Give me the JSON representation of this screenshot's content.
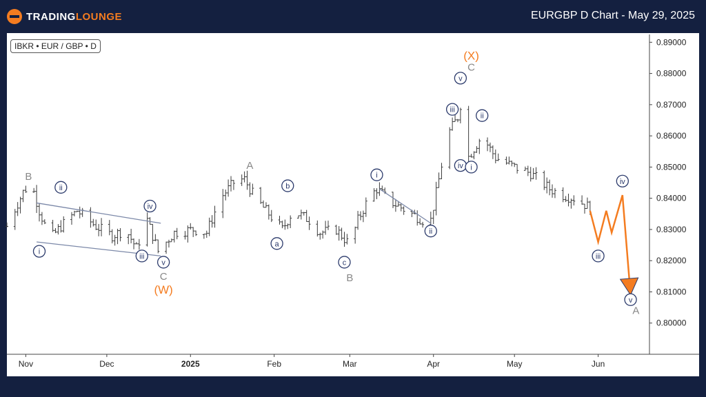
{
  "header": {
    "brand_part1": "TRADING",
    "brand_part2": "LOUNGE",
    "title": "EURGBP D Chart - May 29, 2025"
  },
  "symbol_label": "IBKR • EUR / GBP • D",
  "chart_data": {
    "type": "candlestick",
    "title": "EURGBP D Chart - May 29, 2025",
    "ylim": [
      0.79,
      0.8925
    ],
    "y_ticks": [
      "0.89000",
      "0.88000",
      "0.87000",
      "0.86000",
      "0.85000",
      "0.84000",
      "0.83000",
      "0.82000",
      "0.81000",
      "0.80000"
    ],
    "y_tick_values": [
      0.89,
      0.88,
      0.87,
      0.86,
      0.85,
      0.84,
      0.83,
      0.82,
      0.81,
      0.8
    ],
    "x_ticks": [
      {
        "label": "Nov",
        "date": "2024-11-01"
      },
      {
        "label": "Dec",
        "date": "2024-12-01"
      },
      {
        "label": "2025",
        "date": "2025-01-01",
        "bold": true
      },
      {
        "label": "Feb",
        "date": "2025-02-01"
      },
      {
        "label": "Mar",
        "date": "2025-03-01"
      },
      {
        "label": "Apr",
        "date": "2025-04-01"
      },
      {
        "label": "May",
        "date": "2025-05-01"
      },
      {
        "label": "Jun",
        "date": "2025-06-01"
      }
    ],
    "xlim": [
      "2024-10-25",
      "2025-06-20"
    ],
    "price_path": [
      [
        "2024-10-25",
        0.831
      ],
      [
        "2024-10-31",
        0.842
      ],
      [
        "2024-11-03",
        0.845
      ],
      [
        "2024-11-06",
        0.836
      ],
      [
        "2024-11-10",
        0.827
      ],
      [
        "2024-11-14",
        0.831
      ],
      [
        "2024-11-20",
        0.836
      ],
      [
        "2024-11-27",
        0.831
      ],
      [
        "2024-12-03",
        0.828
      ],
      [
        "2024-12-08",
        0.83
      ],
      [
        "2024-12-12",
        0.824
      ],
      [
        "2024-12-16",
        0.833
      ],
      [
        "2024-12-20",
        0.823
      ],
      [
        "2024-12-26",
        0.829
      ],
      [
        "2025-01-02",
        0.83
      ],
      [
        "2025-01-07",
        0.829
      ],
      [
        "2025-01-12",
        0.84
      ],
      [
        "2025-01-18",
        0.846
      ],
      [
        "2025-01-21",
        0.846
      ],
      [
        "2025-01-25",
        0.84
      ],
      [
        "2025-02-01",
        0.833
      ],
      [
        "2025-02-04",
        0.83
      ],
      [
        "2025-02-08",
        0.836
      ],
      [
        "2025-02-14",
        0.833
      ],
      [
        "2025-02-18",
        0.829
      ],
      [
        "2025-02-24",
        0.83
      ],
      [
        "2025-03-01",
        0.825
      ],
      [
        "2025-03-04",
        0.833
      ],
      [
        "2025-03-08",
        0.84
      ],
      [
        "2025-03-11",
        0.843
      ],
      [
        "2025-03-16",
        0.839
      ],
      [
        "2025-03-22",
        0.836
      ],
      [
        "2025-03-28",
        0.833
      ],
      [
        "2025-03-31",
        0.833
      ],
      [
        "2025-04-03",
        0.846
      ],
      [
        "2025-04-06",
        0.86
      ],
      [
        "2025-04-10",
        0.866
      ],
      [
        "2025-04-11",
        0.87
      ],
      [
        "2025-04-13",
        0.852
      ],
      [
        "2025-04-16",
        0.856
      ],
      [
        "2025-04-19",
        0.86
      ],
      [
        "2025-04-24",
        0.853
      ],
      [
        "2025-05-01",
        0.85
      ],
      [
        "2025-05-07",
        0.848
      ],
      [
        "2025-05-14",
        0.843
      ],
      [
        "2025-05-19",
        0.841
      ],
      [
        "2025-05-23",
        0.84
      ],
      [
        "2025-05-29",
        0.837
      ]
    ],
    "projection": [
      [
        "2025-05-29",
        0.836
      ],
      [
        "2025-06-01",
        0.826
      ],
      [
        "2025-06-04",
        0.836
      ],
      [
        "2025-06-06",
        0.829
      ],
      [
        "2025-06-10",
        0.841
      ],
      [
        "2025-06-13",
        0.809
      ]
    ],
    "trendlines": [
      [
        [
          "2024-11-05",
          0.8385
        ],
        [
          "2024-12-21",
          0.832
        ]
      ],
      [
        [
          "2024-11-05",
          0.826
        ],
        [
          "2024-12-21",
          0.8215
        ]
      ],
      [
        [
          "2025-03-12",
          0.843
        ],
        [
          "2025-03-31",
          0.832
        ]
      ]
    ],
    "labels": [
      {
        "text": "B",
        "date": "2024-11-02",
        "value": 0.847,
        "style": "gray"
      },
      {
        "text": "i",
        "date": "2024-11-06",
        "value": 0.823,
        "style": "circle"
      },
      {
        "text": "ii",
        "date": "2024-11-14",
        "value": 0.8435,
        "style": "circle"
      },
      {
        "text": "iii",
        "date": "2024-12-14",
        "value": 0.8215,
        "style": "circle"
      },
      {
        "text": "iv",
        "date": "2024-12-17",
        "value": 0.8375,
        "style": "circle"
      },
      {
        "text": "v",
        "date": "2024-12-22",
        "value": 0.8195,
        "style": "circle"
      },
      {
        "text": "C",
        "date": "2024-12-22",
        "value": 0.815,
        "style": "gray"
      },
      {
        "text": "(W)",
        "date": "2024-12-22",
        "value": 0.8105,
        "style": "orange"
      },
      {
        "text": "A",
        "date": "2025-01-23",
        "value": 0.8505,
        "style": "gray"
      },
      {
        "text": "b",
        "date": "2025-02-06",
        "value": 0.844,
        "style": "circle"
      },
      {
        "text": "a",
        "date": "2025-02-02",
        "value": 0.8255,
        "style": "circle"
      },
      {
        "text": "c",
        "date": "2025-02-27",
        "value": 0.8195,
        "style": "circle"
      },
      {
        "text": "B",
        "date": "2025-03-01",
        "value": 0.8145,
        "style": "gray"
      },
      {
        "text": "i",
        "date": "2025-03-11",
        "value": 0.8475,
        "style": "circle"
      },
      {
        "text": "ii",
        "date": "2025-03-31",
        "value": 0.8295,
        "style": "circle"
      },
      {
        "text": "iii",
        "date": "2025-04-08",
        "value": 0.8685,
        "style": "circle"
      },
      {
        "text": "v",
        "date": "2025-04-11",
        "value": 0.8785,
        "style": "circle"
      },
      {
        "text": "C",
        "date": "2025-04-15",
        "value": 0.882,
        "style": "gray"
      },
      {
        "text": "(X)",
        "date": "2025-04-15",
        "value": 0.8855,
        "style": "orange"
      },
      {
        "text": "ii",
        "date": "2025-04-19",
        "value": 0.8665,
        "style": "circle"
      },
      {
        "text": "iv",
        "date": "2025-04-11",
        "value": 0.8505,
        "style": "circle"
      },
      {
        "text": "i",
        "date": "2025-04-15",
        "value": 0.85,
        "style": "circle"
      },
      {
        "text": "iii",
        "date": "2025-06-01",
        "value": 0.8215,
        "style": "circle"
      },
      {
        "text": "iv",
        "date": "2025-06-10",
        "value": 0.8455,
        "style": "circle"
      },
      {
        "text": "v",
        "date": "2025-06-13",
        "value": 0.8075,
        "style": "circle"
      },
      {
        "text": "A",
        "date": "2025-06-15",
        "value": 0.804,
        "style": "gray"
      }
    ],
    "colors": {
      "candles": "#3a3a3a",
      "projection": "#f47c20",
      "trendline": "#7b88a8",
      "label_circle": "#2b3a6b",
      "label_gray": "#888888",
      "label_orange": "#f47c20"
    }
  }
}
